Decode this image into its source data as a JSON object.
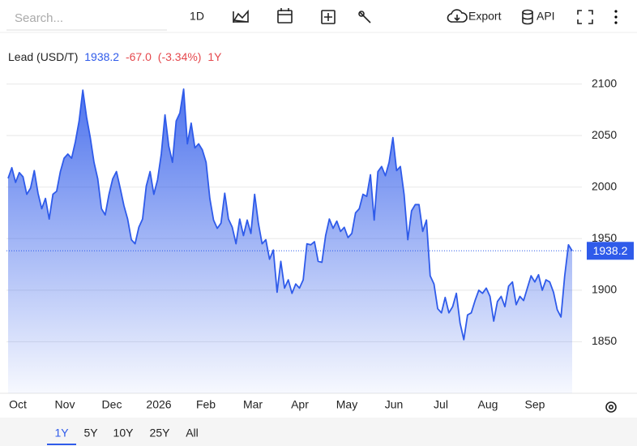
{
  "toolbar": {
    "search_placeholder": "Search...",
    "interval": "1D",
    "export": "Export",
    "api": "API"
  },
  "chart_data": {
    "type": "area",
    "legend": {
      "price": "1938.2",
      "change": "-67.0",
      "change_pct": "(-3.34%)",
      "period": "1Y"
    },
    "x_labels": [
      "Oct",
      "Nov",
      "Dec",
      "2026",
      "Feb",
      "Mar",
      "Apr",
      "May",
      "Jun",
      "Jul",
      "Aug",
      "Sep"
    ],
    "series": [
      {
        "name": "Lead (USD/T)",
        "color": "#2f5bea",
        "values": [
          2008.5,
          2018.8,
          2004.6,
          2014,
          2010,
          1993,
          1999,
          2016,
          1994,
          1979,
          1989,
          1969,
          1993,
          1996,
          2015,
          2028,
          2032,
          2028,
          2044,
          2064,
          2094,
          2068,
          2048,
          2024,
          2008,
          1979,
          1973,
          1993,
          2008,
          2015,
          1999,
          1982,
          1969,
          1949,
          1945,
          1961,
          1969,
          2001,
          2015,
          1993,
          2007,
          2032,
          2070,
          2040,
          2024,
          2064,
          2072,
          2095,
          2042,
          2062,
          2038,
          2042,
          2036,
          2024,
          1989,
          1968,
          1960,
          1965,
          1994,
          1969,
          1961,
          1945,
          1969,
          1953,
          1968,
          1955,
          1993,
          1965,
          1945,
          1949,
          1930,
          1939,
          1898,
          1928,
          1902,
          1910,
          1897,
          1906,
          1902,
          1910,
          1945,
          1944,
          1947,
          1928,
          1927,
          1953,
          1969,
          1960,
          1967,
          1957,
          1961,
          1951,
          1955,
          1975,
          1979,
          1993,
          1991,
          2012,
          1968,
          2015,
          2020,
          2011,
          2024,
          2048,
          2016,
          2020,
          1993,
          1949,
          1977,
          1983,
          1983,
          1957,
          1968,
          1914,
          1906,
          1882,
          1878,
          1893,
          1878,
          1884,
          1897,
          1868,
          1852,
          1876,
          1878,
          1890,
          1900,
          1897,
          1902,
          1894,
          1870,
          1889,
          1894,
          1884,
          1904,
          1908,
          1886,
          1894,
          1890,
          1902,
          1914,
          1908,
          1915,
          1900,
          1910,
          1908,
          1898,
          1881,
          1874,
          1914,
          1944,
          1938.2
        ]
      }
    ],
    "ylim": [
      1800,
      2150
    ],
    "yticks": [
      1850,
      1900,
      1950,
      2000,
      2050,
      2100
    ],
    "grid": true
  },
  "range_buttons": [
    "1Y",
    "5Y",
    "10Y",
    "25Y",
    "All"
  ]
}
